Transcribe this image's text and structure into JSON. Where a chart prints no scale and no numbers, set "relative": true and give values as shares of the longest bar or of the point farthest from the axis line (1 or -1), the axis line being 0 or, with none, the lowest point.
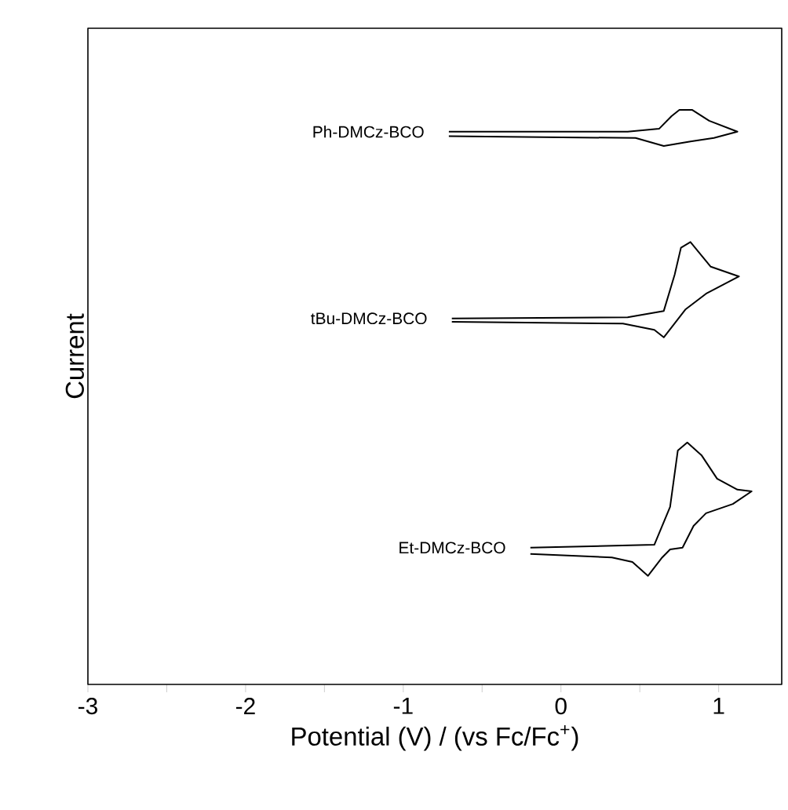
{
  "chart_data": {
    "type": "line",
    "relative": true,
    "xlabel": "Potential (V) / (vs Fc/Fc$^{+}$)",
    "ylabel": "Current",
    "xlim": [
      -3,
      1.4
    ],
    "xticks": [
      -3,
      {
        "value": -2.5,
        "label": null
      },
      -2,
      {
        "value": -1.5,
        "label": null
      },
      -1,
      {
        "value": -0.5,
        "label": null
      },
      0,
      {
        "value": 0.5,
        "label": null
      },
      1
    ],
    "tick_labels": "x",
    "grid": false,
    "marker": "none",
    "line_style": "solid",
    "series": [
      {
        "name": "Ph-DMCz-BCO",
        "color": "#000000",
        "x": [
          -0.711,
          0.423,
          0.622,
          0.701,
          0.751,
          0.831,
          0.94,
          1.119,
          0.97,
          0.821,
          0.652,
          0.473,
          -0.711
        ],
        "values": [
          0.962,
          0.962,
          0.967,
          0.989,
          1.0,
          1.0,
          0.981,
          0.962,
          0.951,
          0.945,
          0.937,
          0.951,
          0.954
        ]
      },
      {
        "name": "tBu-DMCz-BCO",
        "color": "#000000",
        "x": [
          -0.692,
          0.423,
          0.652,
          0.721,
          0.761,
          0.821,
          0.95,
          1.129,
          0.92,
          0.791,
          0.652,
          0.592,
          0.393,
          -0.692
        ],
        "values": [
          0.637,
          0.639,
          0.65,
          0.713,
          0.76,
          0.77,
          0.727,
          0.71,
          0.68,
          0.653,
          0.604,
          0.617,
          0.628,
          0.631
        ]
      },
      {
        "name": "Et-DMCz-BCO",
        "color": "#000000",
        "x": [
          -0.194,
          0.592,
          0.692,
          0.741,
          0.801,
          0.891,
          0.99,
          1.119,
          1.209,
          1.09,
          0.92,
          0.841,
          0.771,
          0.692,
          0.642,
          0.552,
          0.453,
          0.323,
          -0.194
        ],
        "values": [
          0.238,
          0.243,
          0.309,
          0.407,
          0.421,
          0.399,
          0.358,
          0.339,
          0.336,
          0.314,
          0.298,
          0.276,
          0.238,
          0.235,
          0.221,
          0.189,
          0.213,
          0.221,
          0.227
        ]
      }
    ]
  }
}
